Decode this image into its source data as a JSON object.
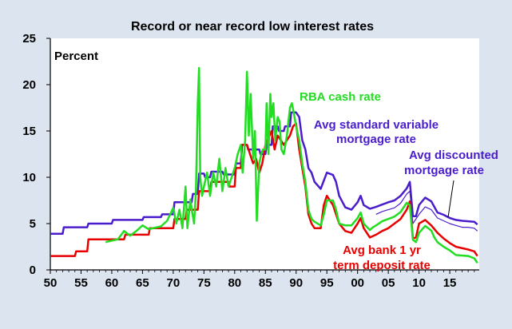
{
  "chart_data": {
    "type": "line",
    "title": "Record or near record low interest rates",
    "ylabel": "Percent",
    "xlabel": "",
    "x_ticks": [
      "50",
      "55",
      "60",
      "65",
      "70",
      "75",
      "80",
      "85",
      "90",
      "95",
      "00",
      "05",
      "10",
      "15"
    ],
    "y_ticks": [
      "0",
      "5",
      "10",
      "15",
      "20",
      "25"
    ],
    "xlim": [
      1950,
      2019.8
    ],
    "ylim": [
      0,
      25
    ],
    "grid": false,
    "legend": "inline labels",
    "series": [
      {
        "name": "RBA cash rate",
        "color": "#22dd22",
        "points": [
          [
            1959,
            3.0
          ],
          [
            1961,
            3.3
          ],
          [
            1962,
            4.2
          ],
          [
            1963,
            3.7
          ],
          [
            1964,
            4.2
          ],
          [
            1965,
            4.8
          ],
          [
            1966,
            4.4
          ],
          [
            1968,
            4.7
          ],
          [
            1969,
            5.3
          ],
          [
            1970,
            6.7
          ],
          [
            1970.5,
            5.0
          ],
          [
            1971,
            6.5
          ],
          [
            1971.5,
            4.5
          ],
          [
            1972,
            9.0
          ],
          [
            1972.3,
            4.5
          ],
          [
            1972.8,
            7.6
          ],
          [
            1973,
            6.6
          ],
          [
            1973.4,
            5.0
          ],
          [
            1973.7,
            8.5
          ],
          [
            1974,
            18.0
          ],
          [
            1974.2,
            21.8
          ],
          [
            1974.4,
            10.0
          ],
          [
            1974.7,
            8.0
          ],
          [
            1975,
            9.0
          ],
          [
            1975.5,
            10.5
          ],
          [
            1976,
            8.0
          ],
          [
            1976.5,
            10.5
          ],
          [
            1977,
            9.0
          ],
          [
            1977.5,
            12.0
          ],
          [
            1978,
            8.5
          ],
          [
            1978.5,
            11.0
          ],
          [
            1979,
            9.0
          ],
          [
            1979.5,
            10.0
          ],
          [
            1980,
            11.0
          ],
          [
            1980.5,
            12.5
          ],
          [
            1981,
            13.5
          ],
          [
            1981.3,
            10.5
          ],
          [
            1981.7,
            14.0
          ],
          [
            1982,
            21.4
          ],
          [
            1982.3,
            14.5
          ],
          [
            1982.6,
            19.0
          ],
          [
            1983,
            12.0
          ],
          [
            1983.3,
            15.0
          ],
          [
            1983.6,
            5.3
          ],
          [
            1984,
            11.5
          ],
          [
            1984.3,
            12.5
          ],
          [
            1984.6,
            13.0
          ],
          [
            1985,
            13.0
          ],
          [
            1985.2,
            18.0
          ],
          [
            1985.5,
            12.5
          ],
          [
            1985.8,
            19.0
          ],
          [
            1986,
            16.5
          ],
          [
            1986.3,
            18.0
          ],
          [
            1986.6,
            14.0
          ],
          [
            1987,
            16.5
          ],
          [
            1987.3,
            16.0
          ],
          [
            1987.6,
            13.0
          ],
          [
            1988,
            12.5
          ],
          [
            1988.5,
            14.5
          ],
          [
            1989,
            17.5
          ],
          [
            1989.3,
            18.0
          ],
          [
            1989.6,
            17.0
          ],
          [
            1990,
            15.5
          ],
          [
            1990.5,
            14.0
          ],
          [
            1991,
            11.5
          ],
          [
            1991.5,
            9.5
          ],
          [
            1992,
            6.5
          ],
          [
            1992.5,
            5.5
          ],
          [
            1993,
            5.2
          ],
          [
            1994,
            4.8
          ],
          [
            1994.5,
            6.0
          ],
          [
            1995,
            7.5
          ],
          [
            1996,
            7.5
          ],
          [
            1996.5,
            6.5
          ],
          [
            1997,
            5.0
          ],
          [
            1998,
            4.8
          ],
          [
            1999,
            4.8
          ],
          [
            2000,
            5.6
          ],
          [
            2000.5,
            6.2
          ],
          [
            2001,
            5.0
          ],
          [
            2002,
            4.3
          ],
          [
            2002.5,
            4.6
          ],
          [
            2003,
            4.8
          ],
          [
            2004,
            5.25
          ],
          [
            2005,
            5.5
          ],
          [
            2006,
            5.75
          ],
          [
            2007,
            6.25
          ],
          [
            2008,
            7.25
          ],
          [
            2008.5,
            7.0
          ],
          [
            2009,
            3.25
          ],
          [
            2009.5,
            3.0
          ],
          [
            2010,
            4.0
          ],
          [
            2011,
            4.75
          ],
          [
            2012,
            4.25
          ],
          [
            2012.5,
            3.5
          ],
          [
            2013,
            3.0
          ],
          [
            2013.5,
            2.75
          ],
          [
            2014,
            2.5
          ],
          [
            2015,
            2.1
          ],
          [
            2016,
            1.6
          ],
          [
            2018,
            1.5
          ],
          [
            2019,
            1.25
          ],
          [
            2019.5,
            0.75
          ]
        ]
      },
      {
        "name": "Avg standard variable mortgage rate",
        "color": "#4a1dcc",
        "points": [
          [
            1950,
            3.9
          ],
          [
            1952,
            3.9
          ],
          [
            1952.2,
            4.6
          ],
          [
            1956,
            4.6
          ],
          [
            1956.2,
            5.0
          ],
          [
            1960,
            5.0
          ],
          [
            1960.2,
            5.4
          ],
          [
            1965,
            5.4
          ],
          [
            1965.2,
            5.7
          ],
          [
            1968,
            5.7
          ],
          [
            1968.2,
            6.0
          ],
          [
            1970,
            6.0
          ],
          [
            1970.2,
            7.3
          ],
          [
            1973,
            7.3
          ],
          [
            1973.2,
            8.2
          ],
          [
            1974,
            8.2
          ],
          [
            1974.2,
            10.4
          ],
          [
            1975,
            10.4
          ],
          [
            1975.2,
            10.0
          ],
          [
            1976,
            10.0
          ],
          [
            1976.2,
            10.6
          ],
          [
            1978,
            10.6
          ],
          [
            1978.2,
            10.3
          ],
          [
            1980,
            10.3
          ],
          [
            1980.2,
            11.5
          ],
          [
            1981,
            11.5
          ],
          [
            1981.2,
            13.5
          ],
          [
            1982,
            13.5
          ],
          [
            1982.2,
            13.0
          ],
          [
            1984,
            13.0
          ],
          [
            1984.2,
            12.5
          ],
          [
            1985,
            12.5
          ],
          [
            1985.2,
            13.5
          ],
          [
            1986,
            13.5
          ],
          [
            1986.2,
            15.5
          ],
          [
            1987,
            15.5
          ],
          [
            1987.2,
            15.0
          ],
          [
            1988,
            15.0
          ],
          [
            1988.2,
            15.5
          ],
          [
            1989,
            15.5
          ],
          [
            1989.2,
            17.0
          ],
          [
            1990,
            17.0
          ],
          [
            1990.5,
            16.5
          ],
          [
            1991,
            14.0
          ],
          [
            1991.5,
            13.0
          ],
          [
            1992,
            11.0
          ],
          [
            1992.5,
            10.5
          ],
          [
            1993,
            9.5
          ],
          [
            1994,
            8.75
          ],
          [
            1995,
            10.5
          ],
          [
            1996,
            10.25
          ],
          [
            1996.5,
            9.5
          ],
          [
            1997,
            8.0
          ],
          [
            1998,
            6.75
          ],
          [
            1999,
            6.5
          ],
          [
            2000,
            7.3
          ],
          [
            2000.5,
            8.0
          ],
          [
            2001,
            7.0
          ],
          [
            2002,
            6.6
          ],
          [
            2003,
            6.8
          ],
          [
            2004,
            7.05
          ],
          [
            2005,
            7.3
          ],
          [
            2006,
            7.5
          ],
          [
            2007,
            8.0
          ],
          [
            2008,
            8.8
          ],
          [
            2008.5,
            9.5
          ],
          [
            2009,
            5.8
          ],
          [
            2009.5,
            5.8
          ],
          [
            2010,
            7.0
          ],
          [
            2011,
            7.8
          ],
          [
            2012,
            7.4
          ],
          [
            2012.5,
            6.8
          ],
          [
            2013,
            6.2
          ],
          [
            2014,
            5.95
          ],
          [
            2015,
            5.6
          ],
          [
            2016,
            5.4
          ],
          [
            2017,
            5.3
          ],
          [
            2018,
            5.25
          ],
          [
            2019,
            5.2
          ],
          [
            2019.5,
            4.9
          ]
        ]
      },
      {
        "name": "Avg discounted mortgage rate",
        "color": "#4a1dcc",
        "points": [
          [
            2003,
            6.0
          ],
          [
            2004,
            6.3
          ],
          [
            2005,
            6.5
          ],
          [
            2006,
            6.7
          ],
          [
            2007,
            7.2
          ],
          [
            2008,
            8.2
          ],
          [
            2008.5,
            8.5
          ],
          [
            2009,
            5.0
          ],
          [
            2010,
            6.0
          ],
          [
            2011,
            6.8
          ],
          [
            2012,
            6.5
          ],
          [
            2013,
            5.6
          ],
          [
            2014,
            5.3
          ],
          [
            2015,
            5.0
          ],
          [
            2016,
            4.8
          ],
          [
            2017,
            4.6
          ],
          [
            2018,
            4.6
          ],
          [
            2019,
            4.5
          ],
          [
            2019.5,
            4.2
          ]
        ]
      },
      {
        "name": "Avg bank 1 yr term deposit rate",
        "color": "#e80000",
        "points": [
          [
            1950,
            1.5
          ],
          [
            1954,
            1.5
          ],
          [
            1954.2,
            2.0
          ],
          [
            1956,
            2.0
          ],
          [
            1956.2,
            3.3
          ],
          [
            1962,
            3.3
          ],
          [
            1962.2,
            3.8
          ],
          [
            1966,
            3.8
          ],
          [
            1966.2,
            4.5
          ],
          [
            1970,
            4.5
          ],
          [
            1970.2,
            5.5
          ],
          [
            1972,
            5.5
          ],
          [
            1972.2,
            6.5
          ],
          [
            1974,
            6.5
          ],
          [
            1974.2,
            8.5
          ],
          [
            1976,
            8.5
          ],
          [
            1976.2,
            9.5
          ],
          [
            1979,
            9.5
          ],
          [
            1979.2,
            9.0
          ],
          [
            1980,
            9.0
          ],
          [
            1980.2,
            11.0
          ],
          [
            1981,
            11.0
          ],
          [
            1981.2,
            13.5
          ],
          [
            1982,
            13.5
          ],
          [
            1982.5,
            12.5
          ],
          [
            1983,
            11.5
          ],
          [
            1983.5,
            12.0
          ],
          [
            1984,
            10.5
          ],
          [
            1984.5,
            11.5
          ],
          [
            1985,
            13.5
          ],
          [
            1986,
            15.0
          ],
          [
            1986.5,
            13.0
          ],
          [
            1987,
            14.5
          ],
          [
            1988,
            13.5
          ],
          [
            1989,
            14.5
          ],
          [
            1989.5,
            15.5
          ],
          [
            1990,
            15.8
          ],
          [
            1990.5,
            13.0
          ],
          [
            1991,
            11.0
          ],
          [
            1991.5,
            9.0
          ],
          [
            1992,
            6.0
          ],
          [
            1992.5,
            5.0
          ],
          [
            1993,
            4.5
          ],
          [
            1994,
            4.5
          ],
          [
            1994.5,
            7.0
          ],
          [
            1995,
            8.0
          ],
          [
            1996,
            7.0
          ],
          [
            1997,
            5.0
          ],
          [
            1998,
            4.2
          ],
          [
            1999,
            4.0
          ],
          [
            2000,
            5.0
          ],
          [
            2000.5,
            5.6
          ],
          [
            2001,
            4.5
          ],
          [
            2002,
            3.5
          ],
          [
            2003,
            3.8
          ],
          [
            2004,
            4.2
          ],
          [
            2005,
            4.5
          ],
          [
            2006,
            5.0
          ],
          [
            2007,
            5.5
          ],
          [
            2008,
            6.5
          ],
          [
            2008.5,
            7.4
          ],
          [
            2009,
            3.4
          ],
          [
            2009.5,
            3.5
          ],
          [
            2010,
            5.0
          ],
          [
            2011,
            5.4
          ],
          [
            2012,
            4.8
          ],
          [
            2013,
            4.0
          ],
          [
            2014,
            3.4
          ],
          [
            2015,
            2.9
          ],
          [
            2016,
            2.5
          ],
          [
            2018,
            2.2
          ],
          [
            2019,
            2.0
          ],
          [
            2019.5,
            1.5
          ]
        ]
      }
    ],
    "labels": {
      "rba": "RBA cash rate",
      "svr_line1": "Avg standard variable",
      "svr_line2": "mortgage rate",
      "disc_line1": "Avg discounted",
      "disc_line2": "mortgage rate",
      "td_line1": "Avg bank 1 yr",
      "td_line2": "term deposit rate"
    }
  }
}
